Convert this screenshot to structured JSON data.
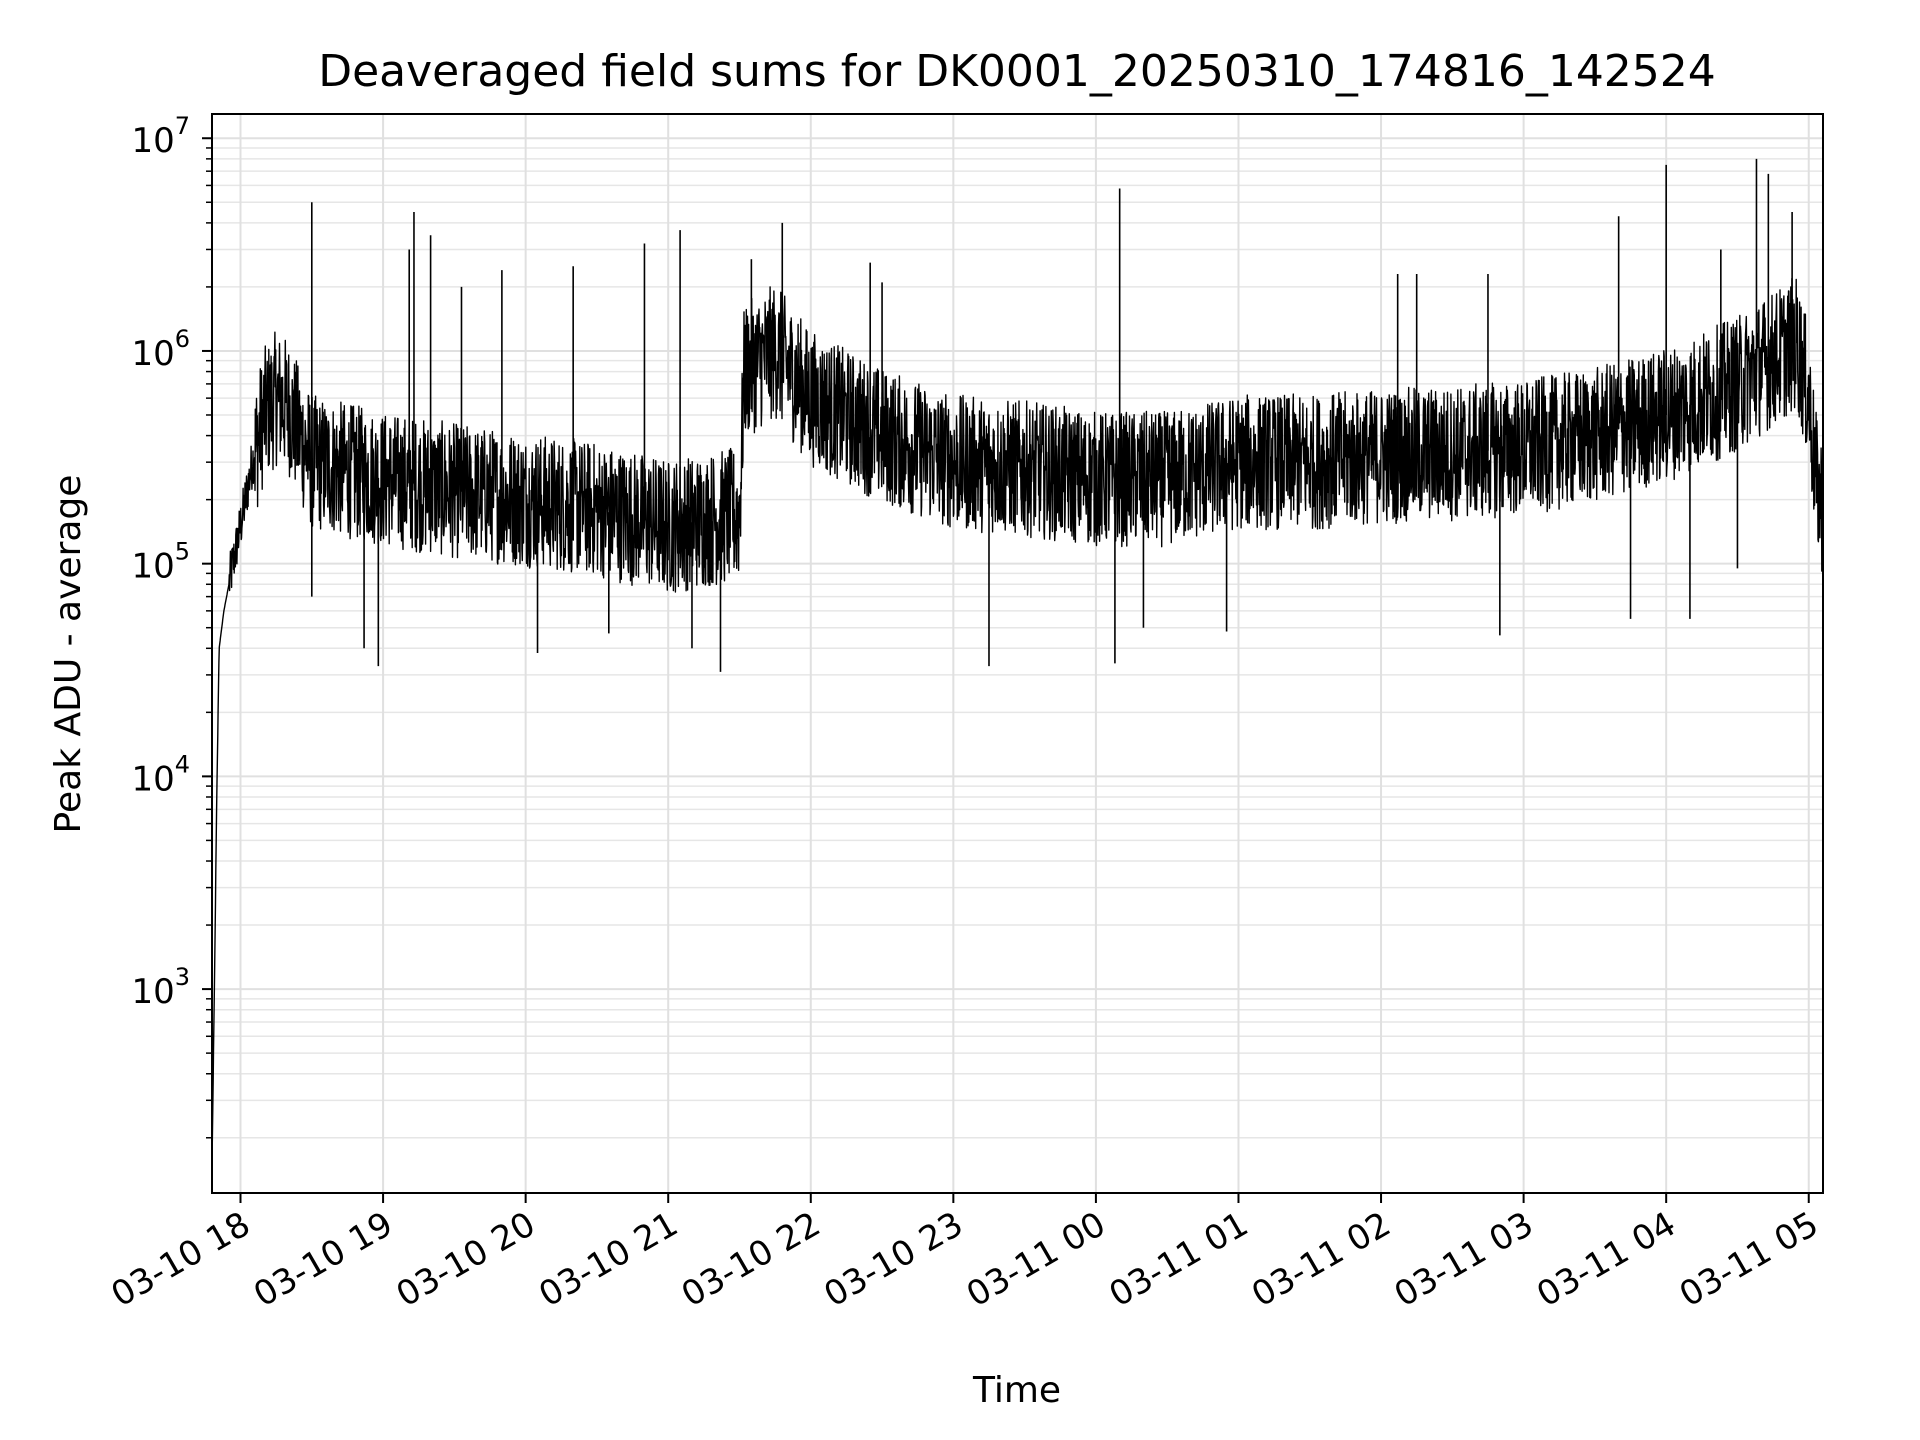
{
  "chart_data": {
    "type": "line",
    "title": "Deaveraged field sums for DK0001_20250310_174816_142524",
    "xlabel": "Time",
    "ylabel": "Peak ADU - average",
    "yscale": "log",
    "ylim": [
      110,
      13000000
    ],
    "xlim": [
      "03-10 17:48",
      "03-11 05:06"
    ],
    "grid": true,
    "line_color": "#000000",
    "x_ticks": [
      "03-10 18",
      "03-10 19",
      "03-10 20",
      "03-10 21",
      "03-10 22",
      "03-10 23",
      "03-11 00",
      "03-11 01",
      "03-11 02",
      "03-11 03",
      "03-11 04",
      "03-11 05"
    ],
    "y_ticks": [
      {
        "base": "10",
        "exp": "3",
        "value": 1000
      },
      {
        "base": "10",
        "exp": "4",
        "value": 10000
      },
      {
        "base": "10",
        "exp": "5",
        "value": 100000
      },
      {
        "base": "10",
        "exp": "6",
        "value": 1000000
      },
      {
        "base": "10",
        "exp": "7",
        "value": 10000000
      }
    ],
    "series": [
      {
        "points": [
          [
            "03-10 17:48",
            150
          ],
          [
            "03-10 17:49",
            1000
          ],
          [
            "03-10 17:50",
            8000
          ],
          [
            "03-10 17:51",
            40000
          ],
          [
            "03-10 17:53",
            60000
          ],
          [
            "03-10 17:56",
            90000
          ],
          [
            "03-10 18:00",
            150000
          ],
          [
            "03-10 18:05",
            300000
          ],
          [
            "03-10 18:10",
            500000
          ],
          [
            "03-10 18:15",
            600000
          ],
          [
            "03-10 18:20",
            550000
          ],
          [
            "03-10 18:25",
            400000
          ],
          [
            "03-10 18:30",
            300000
          ],
          [
            "03-10 19:00",
            250000
          ],
          [
            "03-10 19:30",
            220000
          ],
          [
            "03-10 20:00",
            200000
          ],
          [
            "03-10 20:30",
            180000
          ],
          [
            "03-10 21:00",
            150000
          ],
          [
            "03-10 21:15",
            160000
          ],
          [
            "03-10 21:30",
            170000
          ],
          [
            "03-10 21:32",
            800000
          ],
          [
            "03-10 21:45",
            1000000
          ],
          [
            "03-10 22:00",
            600000
          ],
          [
            "03-10 22:30",
            400000
          ],
          [
            "03-10 23:00",
            300000
          ],
          [
            "03-10 23:30",
            280000
          ],
          [
            "03-11 00:00",
            250000
          ],
          [
            "03-11 00:30",
            250000
          ],
          [
            "03-11 01:00",
            300000
          ],
          [
            "03-11 01:30",
            300000
          ],
          [
            "03-11 02:00",
            320000
          ],
          [
            "03-11 02:30",
            330000
          ],
          [
            "03-11 03:00",
            350000
          ],
          [
            "03-11 03:30",
            400000
          ],
          [
            "03-11 04:00",
            500000
          ],
          [
            "03-11 04:30",
            700000
          ],
          [
            "03-11 04:55",
            1100000
          ],
          [
            "03-11 05:00",
            600000
          ],
          [
            "03-11 05:03",
            250000
          ],
          [
            "03-11 05:06",
            180000
          ]
        ],
        "spikes": [
          [
            "03-10 18:30",
            5000000
          ],
          [
            "03-10 19:13",
            4500000
          ],
          [
            "03-10 19:11",
            3000000
          ],
          [
            "03-10 19:20",
            3500000
          ],
          [
            "03-10 19:33",
            2000000
          ],
          [
            "03-10 19:50",
            2400000
          ],
          [
            "03-10 20:20",
            2500000
          ],
          [
            "03-10 20:50",
            3200000
          ],
          [
            "03-10 21:05",
            3700000
          ],
          [
            "03-10 21:35",
            2700000
          ],
          [
            "03-10 21:48",
            4000000
          ],
          [
            "03-10 22:25",
            2600000
          ],
          [
            "03-10 22:30",
            2100000
          ],
          [
            "03-11 00:10",
            5800000
          ],
          [
            "03-11 02:07",
            2300000
          ],
          [
            "03-11 02:15",
            2300000
          ],
          [
            "03-11 02:45",
            2300000
          ],
          [
            "03-11 03:40",
            4300000
          ],
          [
            "03-11 04:00",
            7500000
          ],
          [
            "03-11 04:23",
            3000000
          ],
          [
            "03-11 04:38",
            8000000
          ],
          [
            "03-11 04:43",
            6800000
          ],
          [
            "03-11 04:53",
            4500000
          ]
        ],
        "dips": [
          [
            "03-10 18:30",
            70000
          ],
          [
            "03-10 18:52",
            40000
          ],
          [
            "03-10 18:58",
            33000
          ],
          [
            "03-10 20:05",
            38000
          ],
          [
            "03-10 20:35",
            47000
          ],
          [
            "03-10 21:10",
            40000
          ],
          [
            "03-10 21:22",
            31000
          ],
          [
            "03-10 23:15",
            33000
          ],
          [
            "03-11 00:08",
            34000
          ],
          [
            "03-11 00:20",
            50000
          ],
          [
            "03-11 00:55",
            48000
          ],
          [
            "03-11 02:50",
            46000
          ],
          [
            "03-11 03:45",
            55000
          ],
          [
            "03-11 04:10",
            55000
          ],
          [
            "03-11 04:30",
            95000
          ]
        ]
      }
    ]
  }
}
